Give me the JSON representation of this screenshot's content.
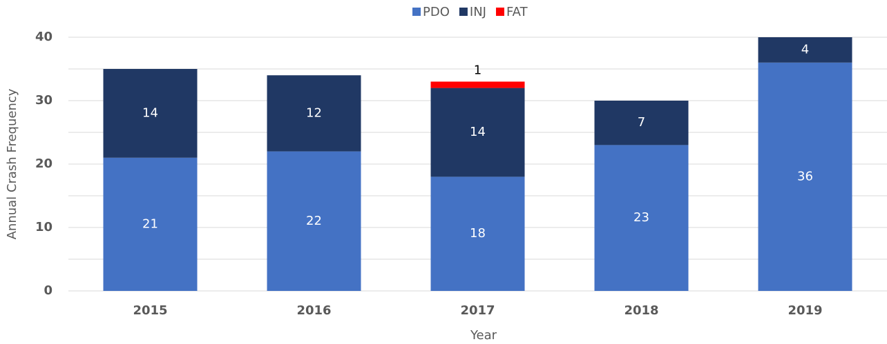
{
  "chart_data": {
    "type": "stacked_bar",
    "categories": [
      "2015",
      "2016",
      "2017",
      "2018",
      "2019"
    ],
    "series": [
      {
        "name": "PDO",
        "color": "#4472c4",
        "values": [
          21,
          22,
          18,
          23,
          36
        ]
      },
      {
        "name": "INJ",
        "color": "#203864",
        "values": [
          14,
          12,
          14,
          7,
          4
        ]
      },
      {
        "name": "FAT",
        "color": "#ff0000",
        "values": [
          null,
          null,
          1,
          null,
          null
        ]
      }
    ],
    "ylim": [
      0,
      40
    ],
    "yticks": [
      0,
      10,
      20,
      30,
      40
    ],
    "minor_grid": [
      5,
      15,
      25,
      35
    ],
    "grid": true,
    "legend": "top",
    "xlabel": "Year",
    "ylabel": "Annual Crash Frequency"
  }
}
